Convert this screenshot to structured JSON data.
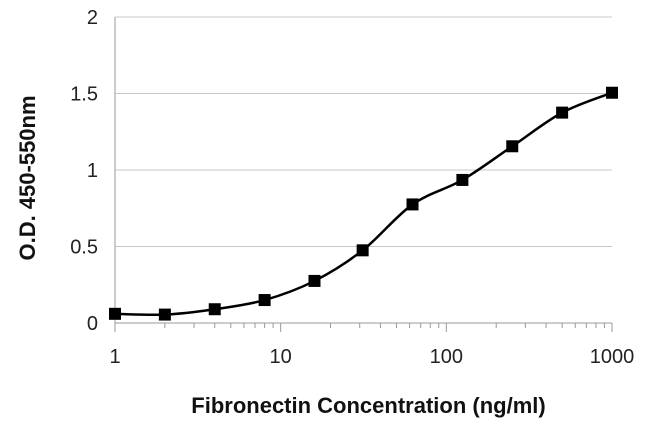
{
  "chart_data": {
    "type": "line",
    "title": "",
    "xlabel": "Fibronectin Concentration (ng/ml)",
    "ylabel": "O.D. 450-550nm",
    "x_scale": "log",
    "xlim": [
      1,
      1000
    ],
    "ylim": [
      0,
      2
    ],
    "x_ticks": [
      1,
      10,
      100,
      1000
    ],
    "x_tick_labels": [
      "1",
      "10",
      "100",
      "1000"
    ],
    "y_ticks": [
      0,
      0.5,
      1,
      1.5,
      2
    ],
    "y_tick_labels": [
      "0",
      "0.5",
      "1",
      "1.5",
      "2"
    ],
    "grid": "horizontal",
    "legend": "none",
    "marker": "square",
    "line_color": "#000000",
    "grid_color": "#c8c8c8",
    "series": [
      {
        "x": [
          1,
          2,
          4,
          8,
          16,
          31.25,
          62.5,
          125,
          250,
          500,
          1000
        ],
        "y": [
          0.06,
          0.055,
          0.09,
          0.15,
          0.275,
          0.475,
          0.775,
          0.935,
          1.155,
          1.375,
          1.505
        ]
      }
    ]
  }
}
